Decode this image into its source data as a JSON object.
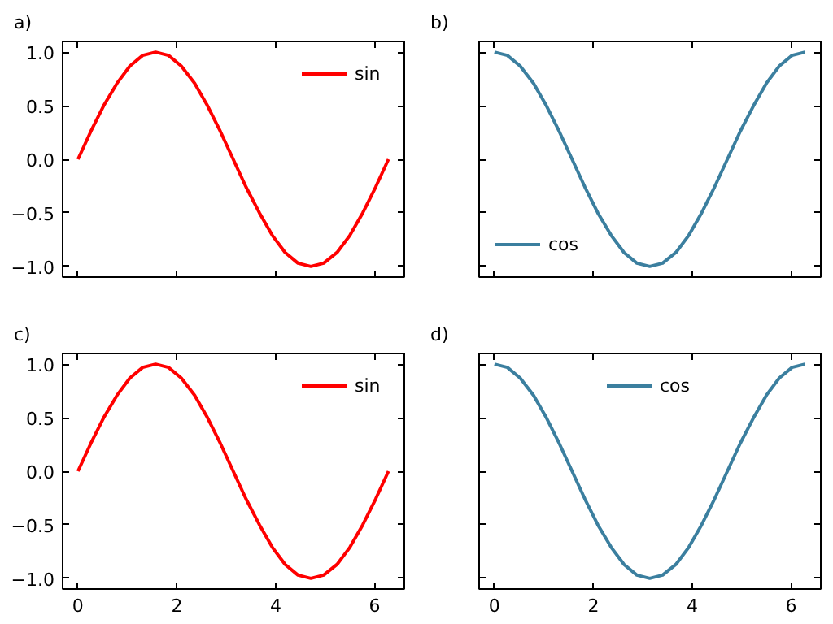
{
  "chart_data": [
    {
      "type": "line",
      "title": "a)",
      "x": [
        0,
        0.26,
        0.52,
        0.79,
        1.05,
        1.31,
        1.57,
        1.83,
        2.09,
        2.36,
        2.62,
        2.88,
        3.14,
        3.4,
        3.67,
        3.93,
        4.19,
        4.45,
        4.71,
        4.97,
        5.24,
        5.5,
        5.76,
        6.02,
        6.28
      ],
      "series": [
        {
          "name": "sin",
          "color": "#ff0000",
          "values": [
            0,
            0.26,
            0.5,
            0.71,
            0.87,
            0.97,
            1,
            0.97,
            0.87,
            0.71,
            0.5,
            0.26,
            0,
            -0.26,
            -0.5,
            -0.71,
            -0.87,
            -0.97,
            -1,
            -0.97,
            -0.87,
            -0.71,
            -0.5,
            -0.26,
            0
          ]
        }
      ],
      "xlim": [
        -0.31,
        6.6
      ],
      "ylim": [
        -1.1,
        1.1
      ],
      "xticks": [
        0,
        2,
        4,
        6
      ],
      "yticks": [
        {
          "value": -1,
          "label": "−1.0"
        },
        {
          "value": -0.5,
          "label": "−0.5"
        },
        {
          "value": 0,
          "label": "0.0"
        },
        {
          "value": 0.5,
          "label": "0.5"
        },
        {
          "value": 1,
          "label": "1.0"
        }
      ],
      "tick_labels": "y",
      "legend": "top right",
      "grid": false
    },
    {
      "type": "line",
      "title": "b)",
      "x": [
        0,
        0.26,
        0.52,
        0.79,
        1.05,
        1.31,
        1.57,
        1.83,
        2.09,
        2.36,
        2.62,
        2.88,
        3.14,
        3.4,
        3.67,
        3.93,
        4.19,
        4.45,
        4.71,
        4.97,
        5.24,
        5.5,
        5.76,
        6.02,
        6.28
      ],
      "series": [
        {
          "name": "cos",
          "color": "#3b7f9f",
          "values": [
            1,
            0.97,
            0.87,
            0.71,
            0.5,
            0.26,
            0,
            -0.26,
            -0.5,
            -0.71,
            -0.87,
            -0.97,
            -1,
            -0.97,
            -0.87,
            -0.71,
            -0.5,
            -0.26,
            0,
            0.26,
            0.5,
            0.71,
            0.87,
            0.97,
            1
          ]
        }
      ],
      "xlim": [
        -0.31,
        6.6
      ],
      "ylim": [
        -1.1,
        1.1
      ],
      "xticks": [
        0,
        2,
        4,
        6
      ],
      "yticks": [
        -1,
        -0.5,
        0,
        0.5,
        1
      ],
      "tick_labels": false,
      "legend": "bottom left",
      "grid": false
    },
    {
      "type": "line",
      "title": "c)",
      "x": [
        0,
        0.26,
        0.52,
        0.79,
        1.05,
        1.31,
        1.57,
        1.83,
        2.09,
        2.36,
        2.62,
        2.88,
        3.14,
        3.4,
        3.67,
        3.93,
        4.19,
        4.45,
        4.71,
        4.97,
        5.24,
        5.5,
        5.76,
        6.02,
        6.28
      ],
      "series": [
        {
          "name": "sin",
          "color": "#ff0000",
          "values": [
            0,
            0.26,
            0.5,
            0.71,
            0.87,
            0.97,
            1,
            0.97,
            0.87,
            0.71,
            0.5,
            0.26,
            0,
            -0.26,
            -0.5,
            -0.71,
            -0.87,
            -0.97,
            -1,
            -0.97,
            -0.87,
            -0.71,
            -0.5,
            -0.26,
            0
          ]
        }
      ],
      "xlim": [
        -0.31,
        6.6
      ],
      "ylim": [
        -1.1,
        1.1
      ],
      "xticks": [
        0,
        2,
        4,
        6
      ],
      "yticks": [
        {
          "value": -1,
          "label": "−1.0"
        },
        {
          "value": -0.5,
          "label": "−0.5"
        },
        {
          "value": 0,
          "label": "0.0"
        },
        {
          "value": 0.5,
          "label": "0.5"
        },
        {
          "value": 1,
          "label": "1.0"
        }
      ],
      "legend": "top right",
      "grid": false
    },
    {
      "type": "line",
      "title": "d)",
      "x": [
        0,
        0.26,
        0.52,
        0.79,
        1.05,
        1.31,
        1.57,
        1.83,
        2.09,
        2.36,
        2.62,
        2.88,
        3.14,
        3.4,
        3.67,
        3.93,
        4.19,
        4.45,
        4.71,
        4.97,
        5.24,
        5.5,
        5.76,
        6.02,
        6.28
      ],
      "series": [
        {
          "name": "cos",
          "color": "#3b7f9f",
          "values": [
            1,
            0.97,
            0.87,
            0.71,
            0.5,
            0.26,
            0,
            -0.26,
            -0.5,
            -0.71,
            -0.87,
            -0.97,
            -1,
            -0.97,
            -0.87,
            -0.71,
            -0.5,
            -0.26,
            0,
            0.26,
            0.5,
            0.71,
            0.87,
            0.97,
            1
          ]
        }
      ],
      "xlim": [
        -0.31,
        6.6
      ],
      "ylim": [
        -1.1,
        1.1
      ],
      "xticks": [
        0,
        2,
        4,
        6
      ],
      "yticks": [
        -1,
        -0.5,
        0,
        0.5,
        1
      ],
      "tick_labels": "x",
      "legend": "top",
      "grid": false
    }
  ]
}
